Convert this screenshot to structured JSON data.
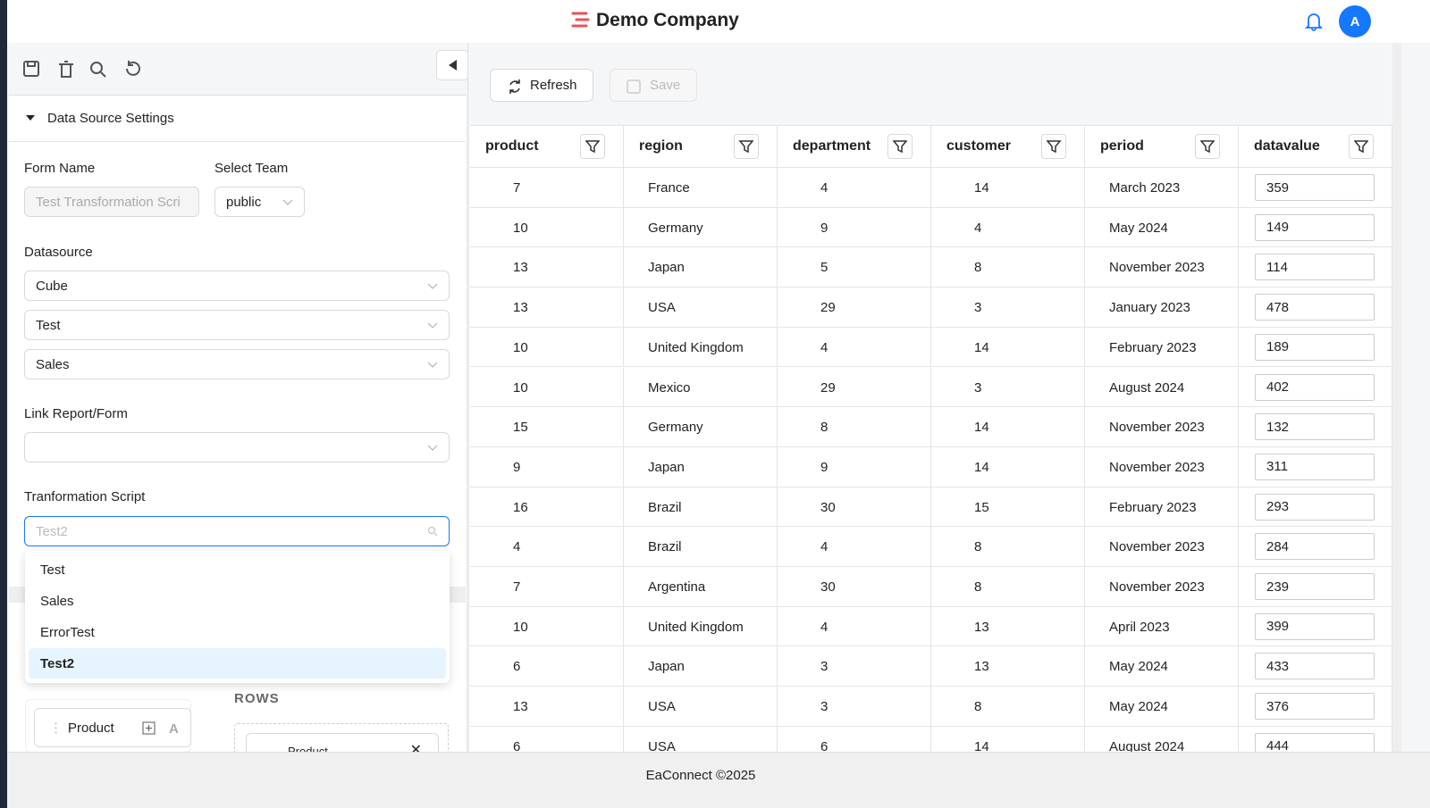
{
  "header": {
    "company": "Demo Company",
    "avatar": "A"
  },
  "sidebar": {
    "section": "Data Source Settings",
    "form_name_label": "Form Name",
    "form_name_placeholder": "Test Transformation Scri",
    "team_label": "Select Team",
    "team": "public",
    "datasource_label": "Datasource",
    "datasource": [
      "Cube",
      "Test",
      "Sales"
    ],
    "link_label": "Link Report/Form",
    "script_label": "Tranformation Script",
    "script_search": "Test2",
    "script_options": [
      "Test",
      "Sales",
      "ErrorTest",
      "Test2"
    ],
    "rows_label": "ROWS",
    "field": "Product",
    "row_field": "Product"
  },
  "toolbar": {
    "refresh": "Refresh",
    "save": "Save"
  },
  "table": {
    "columns": [
      "product",
      "region",
      "department",
      "customer",
      "period",
      "datavalue"
    ],
    "rows": [
      [
        7,
        "France",
        4,
        14,
        "March 2023",
        359
      ],
      [
        10,
        "Germany",
        9,
        4,
        "May 2024",
        149
      ],
      [
        13,
        "Japan",
        5,
        8,
        "November 2023",
        114
      ],
      [
        13,
        "USA",
        29,
        3,
        "January 2023",
        478
      ],
      [
        10,
        "United Kingdom",
        4,
        14,
        "February 2023",
        189
      ],
      [
        10,
        "Mexico",
        29,
        3,
        "August 2024",
        402
      ],
      [
        15,
        "Germany",
        8,
        14,
        "November 2023",
        132
      ],
      [
        9,
        "Japan",
        9,
        14,
        "November 2023",
        311
      ],
      [
        16,
        "Brazil",
        30,
        15,
        "February 2023",
        293
      ],
      [
        4,
        "Brazil",
        4,
        8,
        "November 2023",
        284
      ],
      [
        7,
        "Argentina",
        30,
        8,
        "November 2023",
        239
      ],
      [
        10,
        "United Kingdom",
        4,
        13,
        "April 2023",
        399
      ],
      [
        6,
        "Japan",
        3,
        13,
        "May 2024",
        433
      ],
      [
        13,
        "USA",
        3,
        8,
        "May 2024",
        376
      ],
      [
        6,
        "USA",
        6,
        14,
        "August 2024",
        444
      ]
    ]
  },
  "footer": "EaConnect ©2025"
}
